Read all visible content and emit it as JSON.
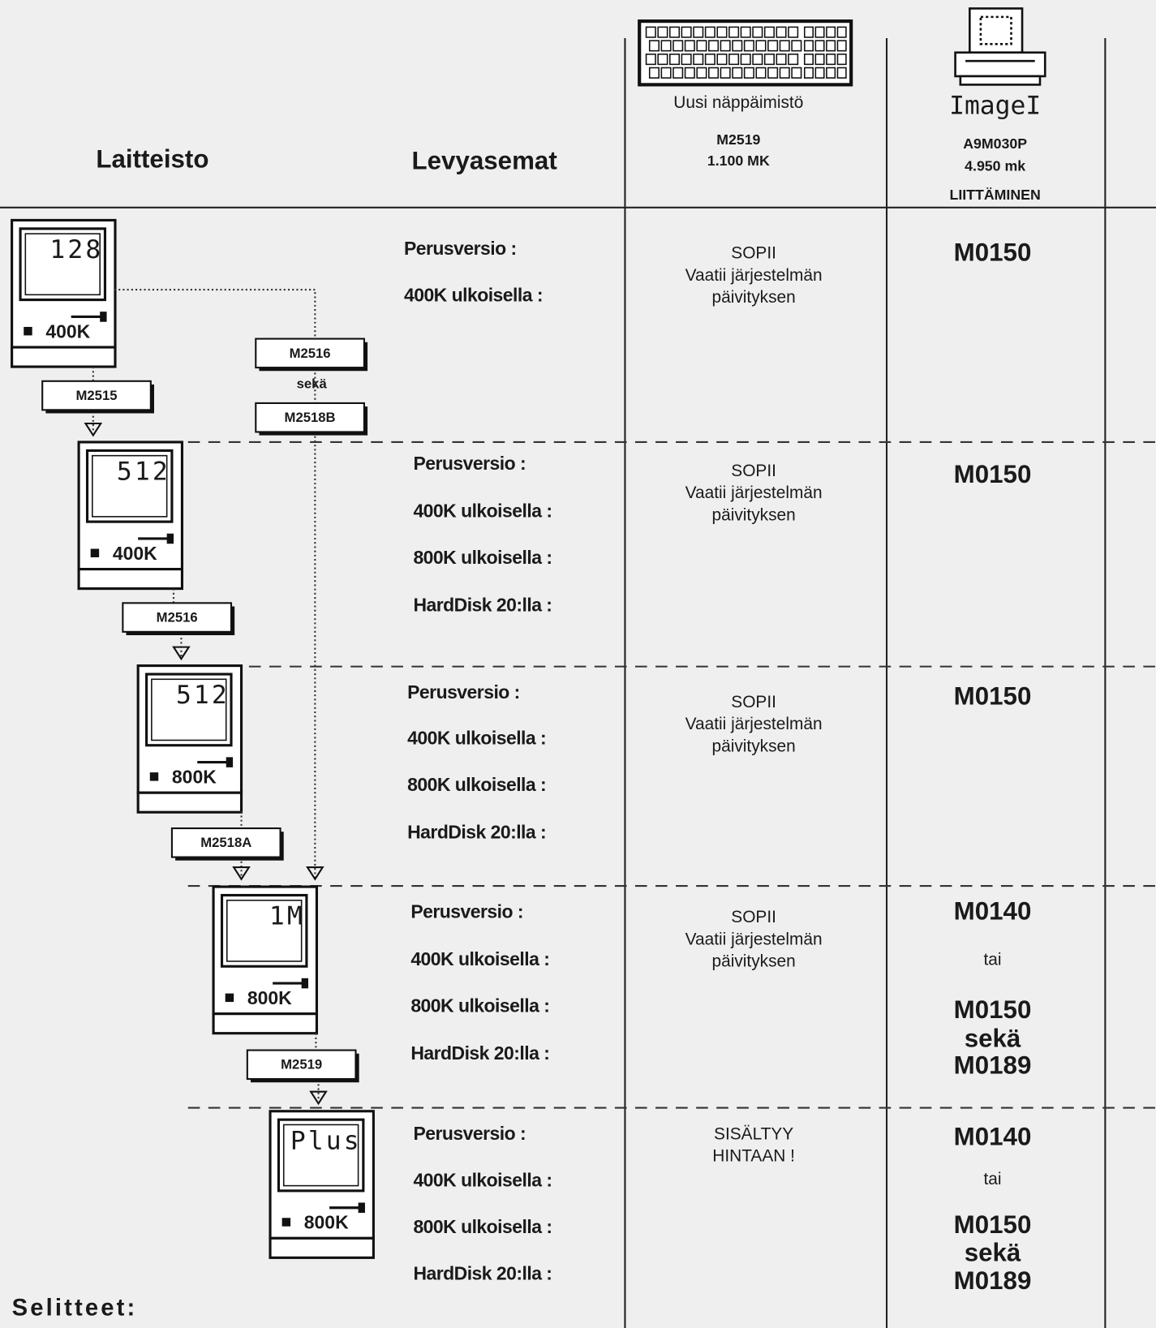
{
  "header": {
    "hardware": "Laitteisto",
    "drives": "Levyasemat",
    "keyboard": {
      "title": "Uusi näppäimistö",
      "code": "M2519",
      "price": "1.100 MK"
    },
    "printer": {
      "title": "ImageI",
      "code": "A9M030P",
      "price": "4.950 mk",
      "note": "LIITTÄMINEN"
    }
  },
  "rows": [
    {
      "model": "128",
      "memory": "400K",
      "drives": [
        "Perusversio :",
        "400K ulkoisella :"
      ],
      "keyboard": [
        "SOPII",
        "Vaatii järjestelmän",
        "päivityksen"
      ],
      "printer": [
        "M0150"
      ]
    },
    {
      "model": "512",
      "memory": "400K",
      "drives": [
        "Perusversio :",
        "400K ulkoisella :",
        "800K ulkoisella :",
        "HardDisk 20:lla :"
      ],
      "keyboard": [
        "SOPII",
        "Vaatii järjestelmän",
        "päivityksen"
      ],
      "printer": [
        "M0150"
      ]
    },
    {
      "model": "512",
      "memory": "800K",
      "drives": [
        "Perusversio :",
        "400K ulkoisella :",
        "800K ulkoisella :",
        "HardDisk 20:lla :"
      ],
      "keyboard": [
        "SOPII",
        "Vaatii järjestelmän",
        "päivityksen"
      ],
      "printer": [
        "M0150"
      ]
    },
    {
      "model": "1M",
      "memory": "800K",
      "drives": [
        "Perusversio :",
        "400K ulkoisella :",
        "800K ulkoisella :",
        "HardDisk 20:lla :"
      ],
      "keyboard": [
        "SOPII",
        "Vaatii järjestelmän",
        "päivityksen"
      ],
      "printer": [
        "M0140",
        "tai",
        "M0150",
        "sekä",
        "M0189"
      ]
    },
    {
      "model": "Plus",
      "memory": "800K",
      "drives": [
        "Perusversio :",
        "400K ulkoisella :",
        "800K ulkoisella :",
        "HardDisk 20:lla :"
      ],
      "keyboard": [
        "SISÄLTYY",
        "HINTAAN !"
      ],
      "printer": [
        "M0140",
        "tai",
        "M0150",
        "sekä",
        "M0189"
      ]
    }
  ],
  "kits": [
    "M2515",
    "M2516",
    "M2518B",
    "M2516",
    "M2518A",
    "M2519"
  ],
  "kit_joiner": "sekä",
  "legend": "Selitteet:"
}
